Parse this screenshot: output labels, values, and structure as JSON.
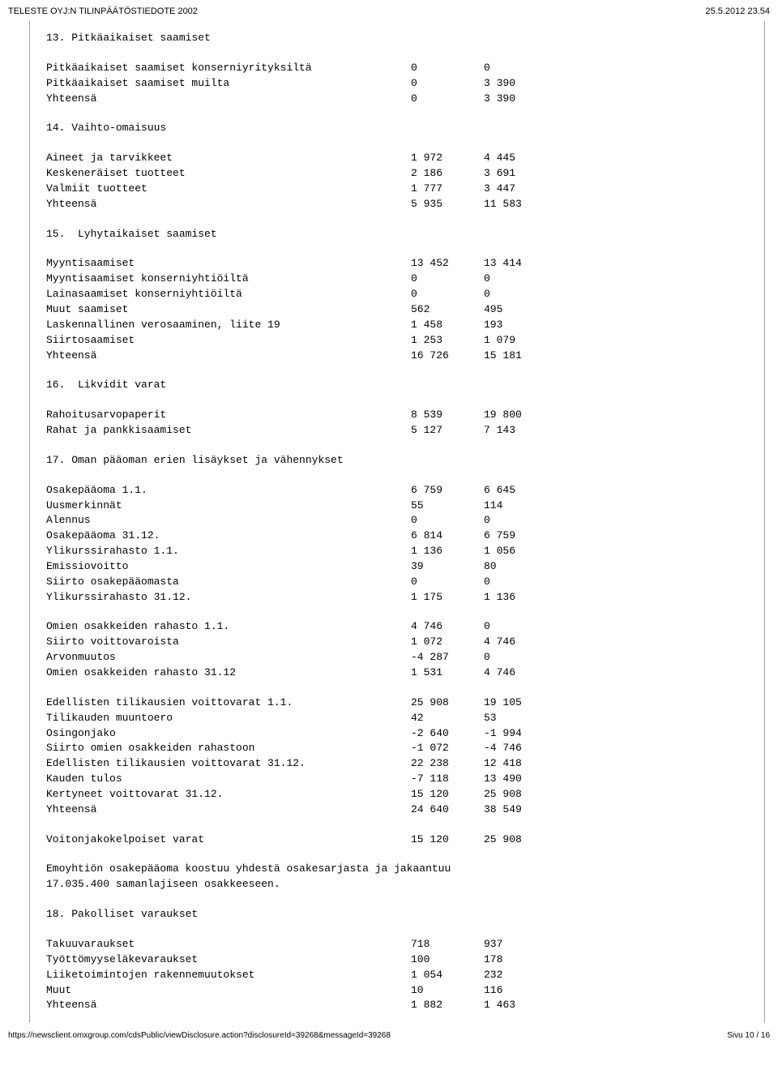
{
  "header": {
    "title": "TELESTE OYJ:N TILINPÄÄTÖSTIEDOTE 2002",
    "datetime": "25.5.2012 23.54"
  },
  "footer": {
    "url": "https://newsclient.omxgroup.com/cdsPublic/viewDisclosure.action?disclosureId=39268&messageId=39268",
    "page": "Sivu 10 / 16"
  },
  "sections": [
    {
      "heading": "13. Pitkäaikaiset saamiset",
      "rows": [
        {
          "l": "Pitkäaikaiset saamiset konserniyrityksiltä",
          "a": "0",
          "b": "0"
        },
        {
          "l": "Pitkäaikaiset saamiset muilta",
          "a": "0",
          "b": "3 390"
        },
        {
          "l": "Yhteensä",
          "a": "0",
          "b": "3 390"
        }
      ]
    },
    {
      "heading": "14. Vaihto-omaisuus",
      "rows": [
        {
          "l": "Aineet ja tarvikkeet",
          "a": "1 972",
          "b": "4 445"
        },
        {
          "l": "Keskeneräiset tuotteet",
          "a": "2 186",
          "b": "3 691"
        },
        {
          "l": "Valmiit tuotteet",
          "a": "1 777",
          "b": "3 447"
        },
        {
          "l": "Yhteensä",
          "a": "5 935",
          "b": "11 583"
        }
      ]
    },
    {
      "heading": "15.  Lyhytaikaiset saamiset",
      "rows": [
        {
          "l": "Myyntisaamiset",
          "a": "13 452",
          "b": "13 414"
        },
        {
          "l": "Myyntisaamiset konserniyhtiöiltä",
          "a": "0",
          "b": "0"
        },
        {
          "l": "Lainasaamiset konserniyhtiöiltä",
          "a": "0",
          "b": "0"
        },
        {
          "l": "Muut saamiset",
          "a": "562",
          "b": "495"
        },
        {
          "l": "Laskennallinen verosaaminen, liite 19",
          "a": "1 458",
          "b": "193"
        },
        {
          "l": "Siirtosaamiset",
          "a": "1 253",
          "b": "1 079"
        },
        {
          "l": "Yhteensä",
          "a": "16 726",
          "b": "15 181"
        }
      ]
    },
    {
      "heading": "16.  Likvidit varat",
      "rows": [
        {
          "l": "Rahoitusarvopaperit",
          "a": "8 539",
          "b": "19 800"
        },
        {
          "l": "Rahat ja pankkisaamiset",
          "a": "5 127",
          "b": "7 143"
        }
      ]
    },
    {
      "heading": "17. Oman pääoman erien lisäykset ja vähennykset",
      "rows": [
        {
          "l": "Osakepääoma 1.1.",
          "a": "6 759",
          "b": "6 645"
        },
        {
          "l": "Uusmerkinnät",
          "a": "55",
          "b": "114"
        },
        {
          "l": "Alennus",
          "a": "0",
          "b": "0"
        },
        {
          "l": "Osakepääoma 31.12.",
          "a": "6 814",
          "b": "6 759"
        },
        {
          "l": "Ylikurssirahasto 1.1.",
          "a": "1 136",
          "b": "1 056"
        },
        {
          "l": "Emissiovoitto",
          "a": "39",
          "b": "80"
        },
        {
          "l": "Siirto osakepääomasta",
          "a": "0",
          "b": "0"
        },
        {
          "l": "Ylikurssirahasto 31.12.",
          "a": "1 175",
          "b": "1 136"
        },
        {
          "spacer": true
        },
        {
          "l": "Omien osakkeiden rahasto 1.1.",
          "a": "4 746",
          "b": "0"
        },
        {
          "l": "Siirto voittovaroista",
          "a": "1 072",
          "b": "4 746"
        },
        {
          "l": "Arvonmuutos",
          "a": "-4 287",
          "b": "0"
        },
        {
          "l": "Omien osakkeiden rahasto 31.12",
          "a": "1 531",
          "b": "4 746"
        },
        {
          "spacer": true
        },
        {
          "l": "Edellisten tilikausien voittovarat 1.1.",
          "a": "25 908",
          "b": "19 105"
        },
        {
          "l": "Tilikauden muuntoero",
          "a": "42",
          "b": "53"
        },
        {
          "l": "Osingonjako",
          "a": "-2 640",
          "b": "-1 994"
        },
        {
          "l": "Siirto omien osakkeiden rahastoon",
          "a": "-1 072",
          "b": "-4 746"
        },
        {
          "l": "Edellisten tilikausien voittovarat 31.12.",
          "a": "22 238",
          "b": "12 418"
        },
        {
          "l": "Kauden tulos",
          "a": "-7 118",
          "b": "13 490"
        },
        {
          "l": "Kertyneet voittovarat 31.12.",
          "a": "15 120",
          "b": "25 908"
        },
        {
          "l": "Yhteensä",
          "a": "24 640",
          "b": "38 549"
        },
        {
          "spacer": true
        },
        {
          "l": "Voitonjakokelpoiset varat",
          "a": "15 120",
          "b": "25 908"
        }
      ],
      "note": [
        "Emoyhtiön osakepääoma koostuu yhdestä osakesarjasta ja jakaantuu",
        "17.035.400 samanlajiseen osakkeeseen."
      ]
    },
    {
      "heading": "18. Pakolliset varaukset",
      "rows": [
        {
          "l": "Takuuvaraukset",
          "a": "718",
          "b": "937"
        },
        {
          "l": "Työttömyyseläkevaraukset",
          "a": "100",
          "b": "178"
        },
        {
          "l": "Liiketoimintojen rakennemuutokset",
          "a": "1 054",
          "b": "232"
        },
        {
          "l": "Muut",
          "a": "10",
          "b": "116"
        },
        {
          "l": "Yhteensä",
          "a": "1 882",
          "b": "1 463"
        }
      ]
    }
  ]
}
